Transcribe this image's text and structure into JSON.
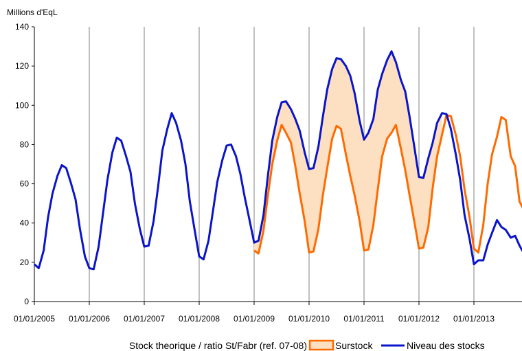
{
  "chart_data": {
    "type": "area",
    "ylabel": "Millions d'EqL",
    "ylim": [
      0,
      140
    ],
    "yticks": [
      0,
      20,
      40,
      60,
      80,
      100,
      120,
      140
    ],
    "x_tick_labels": [
      "01/01/2005",
      "01/01/2006",
      "01/01/2007",
      "01/01/2008",
      "01/01/2009",
      "01/01/2010",
      "01/01/2011",
      "01/01/2012",
      "01/01/2013"
    ],
    "x_start_year": 2005,
    "x_end_year": 2013.92,
    "grid": "vertical at year marks",
    "legend_position": "bottom",
    "legend": {
      "label_a": "Stock theorique / ratio St/Fabr (ref. 07-08)",
      "label_b": "Surstock",
      "label_c": "Niveau des stocks"
    },
    "colors": {
      "niveau": "#0a14c8",
      "theorique": "#ff6a00",
      "surstock_fill": "#fde0c2",
      "grid": "#808080",
      "axis": "#000000"
    },
    "niveau": [
      [
        2005.0,
        19
      ],
      [
        2005.08,
        17
      ],
      [
        2005.17,
        26
      ],
      [
        2005.25,
        43
      ],
      [
        2005.33,
        55
      ],
      [
        2005.42,
        64
      ],
      [
        2005.5,
        69.5
      ],
      [
        2005.58,
        68
      ],
      [
        2005.67,
        60
      ],
      [
        2005.75,
        52
      ],
      [
        2005.83,
        37
      ],
      [
        2005.92,
        23
      ],
      [
        2006.0,
        17
      ],
      [
        2006.08,
        16.5
      ],
      [
        2006.17,
        28
      ],
      [
        2006.25,
        45
      ],
      [
        2006.33,
        62
      ],
      [
        2006.42,
        76
      ],
      [
        2006.5,
        83.5
      ],
      [
        2006.58,
        82
      ],
      [
        2006.67,
        74
      ],
      [
        2006.75,
        66
      ],
      [
        2006.83,
        50
      ],
      [
        2006.92,
        37
      ],
      [
        2007.0,
        28
      ],
      [
        2007.08,
        28.5
      ],
      [
        2007.17,
        41
      ],
      [
        2007.25,
        58
      ],
      [
        2007.33,
        77
      ],
      [
        2007.42,
        88
      ],
      [
        2007.5,
        96
      ],
      [
        2007.58,
        91
      ],
      [
        2007.67,
        82
      ],
      [
        2007.75,
        70
      ],
      [
        2007.83,
        51
      ],
      [
        2007.92,
        36
      ],
      [
        2008.0,
        23
      ],
      [
        2008.08,
        21.5
      ],
      [
        2008.17,
        31
      ],
      [
        2008.25,
        46
      ],
      [
        2008.33,
        61
      ],
      [
        2008.42,
        72
      ],
      [
        2008.5,
        79.5
      ],
      [
        2008.58,
        80
      ],
      [
        2008.67,
        74
      ],
      [
        2008.75,
        65
      ],
      [
        2008.83,
        53
      ],
      [
        2008.92,
        41
      ],
      [
        2009.0,
        30
      ],
      [
        2009.08,
        31
      ],
      [
        2009.17,
        44
      ],
      [
        2009.25,
        64
      ],
      [
        2009.33,
        82
      ],
      [
        2009.42,
        94
      ],
      [
        2009.5,
        101.5
      ],
      [
        2009.58,
        102
      ],
      [
        2009.67,
        98
      ],
      [
        2009.75,
        93
      ],
      [
        2009.83,
        87
      ],
      [
        2009.92,
        76
      ],
      [
        2010.0,
        67.5
      ],
      [
        2010.08,
        68
      ],
      [
        2010.17,
        79
      ],
      [
        2010.25,
        94
      ],
      [
        2010.33,
        108
      ],
      [
        2010.42,
        118.5
      ],
      [
        2010.5,
        124
      ],
      [
        2010.58,
        123.5
      ],
      [
        2010.67,
        120
      ],
      [
        2010.75,
        115
      ],
      [
        2010.83,
        106
      ],
      [
        2010.92,
        92
      ],
      [
        2011.0,
        82.5
      ],
      [
        2011.08,
        86
      ],
      [
        2011.17,
        93
      ],
      [
        2011.25,
        108
      ],
      [
        2011.33,
        116
      ],
      [
        2011.42,
        123
      ],
      [
        2011.5,
        127.5
      ],
      [
        2011.58,
        122
      ],
      [
        2011.67,
        113
      ],
      [
        2011.75,
        107
      ],
      [
        2011.83,
        94
      ],
      [
        2011.92,
        78
      ],
      [
        2012.0,
        63.5
      ],
      [
        2012.08,
        63
      ],
      [
        2012.17,
        73
      ],
      [
        2012.25,
        81
      ],
      [
        2012.33,
        91
      ],
      [
        2012.42,
        96
      ],
      [
        2012.5,
        95.5
      ],
      [
        2012.58,
        88
      ],
      [
        2012.67,
        75
      ],
      [
        2012.75,
        62
      ],
      [
        2012.83,
        44
      ],
      [
        2012.92,
        32
      ],
      [
        2013.0,
        19
      ],
      [
        2013.08,
        21
      ],
      [
        2013.17,
        21
      ],
      [
        2013.25,
        29
      ],
      [
        2013.33,
        35
      ],
      [
        2013.42,
        41.5
      ],
      [
        2013.5,
        38
      ],
      [
        2013.58,
        36.5
      ],
      [
        2013.67,
        32.5
      ],
      [
        2013.75,
        33.5
      ],
      [
        2013.83,
        28.5
      ],
      [
        2013.92,
        24
      ]
    ],
    "theorique": [
      [
        2009.0,
        26
      ],
      [
        2009.08,
        24.5
      ],
      [
        2009.17,
        36
      ],
      [
        2009.25,
        54
      ],
      [
        2009.33,
        70
      ],
      [
        2009.42,
        82
      ],
      [
        2009.5,
        90
      ],
      [
        2009.58,
        86
      ],
      [
        2009.67,
        81
      ],
      [
        2009.75,
        69
      ],
      [
        2009.83,
        55
      ],
      [
        2009.92,
        41
      ],
      [
        2010.0,
        25
      ],
      [
        2010.08,
        25.5
      ],
      [
        2010.17,
        37
      ],
      [
        2010.25,
        54
      ],
      [
        2010.33,
        68
      ],
      [
        2010.42,
        83
      ],
      [
        2010.5,
        89.5
      ],
      [
        2010.58,
        88
      ],
      [
        2010.67,
        75
      ],
      [
        2010.75,
        64
      ],
      [
        2010.83,
        54
      ],
      [
        2010.92,
        41
      ],
      [
        2011.0,
        26
      ],
      [
        2011.08,
        26.5
      ],
      [
        2011.17,
        39
      ],
      [
        2011.25,
        57
      ],
      [
        2011.33,
        74
      ],
      [
        2011.42,
        83
      ],
      [
        2011.5,
        86
      ],
      [
        2011.58,
        90
      ],
      [
        2011.67,
        78
      ],
      [
        2011.75,
        67
      ],
      [
        2011.83,
        54
      ],
      [
        2011.92,
        40
      ],
      [
        2012.0,
        27
      ],
      [
        2012.08,
        27.5
      ],
      [
        2012.17,
        38
      ],
      [
        2012.25,
        58
      ],
      [
        2012.33,
        74
      ],
      [
        2012.42,
        85
      ],
      [
        2012.5,
        95
      ],
      [
        2012.58,
        94.5
      ],
      [
        2012.67,
        85
      ],
      [
        2012.75,
        74
      ],
      [
        2012.83,
        57
      ],
      [
        2012.92,
        43
      ],
      [
        2013.0,
        27
      ],
      [
        2013.08,
        25
      ],
      [
        2013.17,
        39
      ],
      [
        2013.25,
        60
      ],
      [
        2013.33,
        75
      ],
      [
        2013.42,
        84
      ],
      [
        2013.5,
        94
      ],
      [
        2013.58,
        92.5
      ],
      [
        2013.67,
        74
      ],
      [
        2013.75,
        69
      ],
      [
        2013.83,
        51
      ],
      [
        2013.92,
        46
      ]
    ]
  }
}
